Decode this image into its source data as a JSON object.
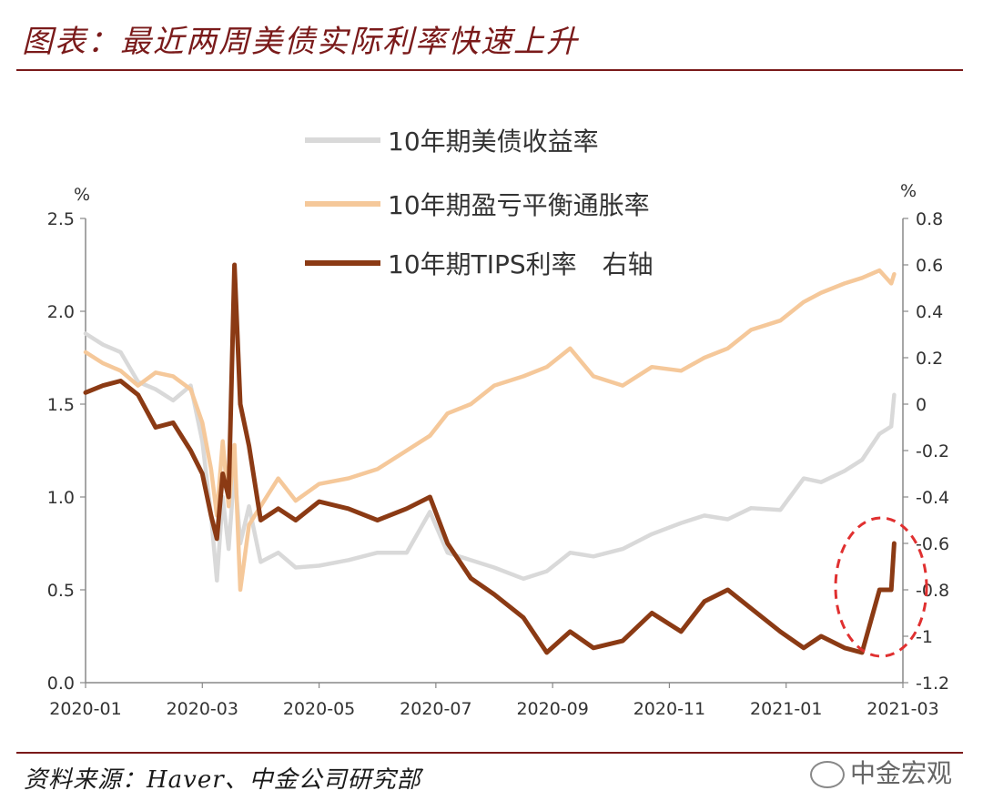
{
  "title": "图表：最近两周美债实际利率快速上升",
  "source": "资料来源：Haver、中金公司研究部",
  "watermark": "中金宏观",
  "chart_data": {
    "type": "line",
    "left_unit": "%",
    "right_unit": "%",
    "left_ylim": [
      0.0,
      2.5
    ],
    "right_ylim": [
      -1.2,
      0.8
    ],
    "left_ticks": [
      "0.0",
      "0.5",
      "1.0",
      "1.5",
      "2.0",
      "2.5"
    ],
    "right_ticks": [
      "-1.2",
      "-1",
      "-0.8",
      "-0.6",
      "-0.4",
      "-0.2",
      "0",
      "0.2",
      "0.4",
      "0.6",
      "0.8"
    ],
    "x_ticks": [
      "2020-01",
      "2020-03",
      "2020-05",
      "2020-07",
      "2020-09",
      "2020-11",
      "2021-01",
      "2021-03"
    ],
    "x_months": [
      0,
      2,
      4,
      6,
      8,
      10,
      12,
      14
    ],
    "legend": "top-center",
    "colors": {
      "nominal": "#d9d9d9",
      "breakeven": "#f5c89a",
      "tips": "#8b3a14",
      "highlight": "#e03030"
    },
    "series": [
      {
        "name": "10年期美债收益率",
        "axis": "left",
        "x": [
          0,
          0.3,
          0.6,
          0.9,
          1.2,
          1.5,
          1.8,
          2.0,
          2.15,
          2.25,
          2.35,
          2.45,
          2.55,
          2.65,
          2.8,
          3.0,
          3.3,
          3.6,
          4.0,
          4.5,
          5.0,
          5.5,
          5.9,
          6.2,
          6.6,
          7.0,
          7.5,
          7.9,
          8.3,
          8.7,
          9.2,
          9.7,
          10.2,
          10.6,
          11.0,
          11.4,
          11.9,
          12.3,
          12.6,
          13.0,
          13.3,
          13.6,
          13.8,
          13.85
        ],
        "y": [
          1.88,
          1.82,
          1.78,
          1.62,
          1.58,
          1.52,
          1.6,
          1.3,
          0.9,
          0.55,
          1.0,
          0.72,
          1.15,
          0.75,
          0.95,
          0.65,
          0.7,
          0.62,
          0.63,
          0.66,
          0.7,
          0.7,
          0.92,
          0.7,
          0.66,
          0.62,
          0.56,
          0.6,
          0.7,
          0.68,
          0.72,
          0.8,
          0.86,
          0.9,
          0.88,
          0.94,
          0.93,
          1.1,
          1.08,
          1.14,
          1.2,
          1.34,
          1.38,
          1.55
        ]
      },
      {
        "name": "10年期盈亏平衡通胀率",
        "axis": "left",
        "x": [
          0,
          0.3,
          0.6,
          0.9,
          1.2,
          1.5,
          1.8,
          2.0,
          2.15,
          2.25,
          2.35,
          2.45,
          2.55,
          2.65,
          2.8,
          3.0,
          3.3,
          3.6,
          4.0,
          4.5,
          5.0,
          5.5,
          5.9,
          6.2,
          6.6,
          7.0,
          7.5,
          7.9,
          8.3,
          8.7,
          9.2,
          9.7,
          10.2,
          10.6,
          11.0,
          11.4,
          11.9,
          12.3,
          12.6,
          13.0,
          13.3,
          13.6,
          13.8,
          13.85
        ],
        "y": [
          1.78,
          1.72,
          1.68,
          1.6,
          1.67,
          1.65,
          1.58,
          1.4,
          1.15,
          0.9,
          1.3,
          0.95,
          1.28,
          0.5,
          0.85,
          0.95,
          1.1,
          0.98,
          1.07,
          1.1,
          1.15,
          1.25,
          1.33,
          1.45,
          1.5,
          1.6,
          1.65,
          1.7,
          1.8,
          1.65,
          1.6,
          1.7,
          1.68,
          1.75,
          1.8,
          1.9,
          1.95,
          2.05,
          2.1,
          2.15,
          2.18,
          2.22,
          2.15,
          2.2
        ]
      },
      {
        "name": "10年期TIPS利率　右轴",
        "axis": "right",
        "x": [
          0,
          0.3,
          0.6,
          0.9,
          1.2,
          1.5,
          1.8,
          2.0,
          2.15,
          2.25,
          2.35,
          2.45,
          2.55,
          2.65,
          2.8,
          3.0,
          3.3,
          3.6,
          4.0,
          4.5,
          5.0,
          5.5,
          5.9,
          6.2,
          6.6,
          7.0,
          7.5,
          7.9,
          8.3,
          8.7,
          9.2,
          9.7,
          10.2,
          10.6,
          11.0,
          11.4,
          11.9,
          12.3,
          12.6,
          13.0,
          13.3,
          13.6,
          13.8,
          13.85
        ],
        "y": [
          0.05,
          0.08,
          0.1,
          0.04,
          -0.1,
          -0.08,
          -0.2,
          -0.3,
          -0.48,
          -0.58,
          -0.3,
          -0.4,
          0.6,
          0.0,
          -0.18,
          -0.5,
          -0.45,
          -0.5,
          -0.42,
          -0.45,
          -0.5,
          -0.45,
          -0.4,
          -0.6,
          -0.75,
          -0.82,
          -0.92,
          -1.07,
          -0.98,
          -1.05,
          -1.02,
          -0.9,
          -0.98,
          -0.85,
          -0.8,
          -0.88,
          -0.98,
          -1.05,
          -1.0,
          -1.05,
          -1.07,
          -0.8,
          -0.8,
          -0.6
        ]
      }
    ]
  }
}
